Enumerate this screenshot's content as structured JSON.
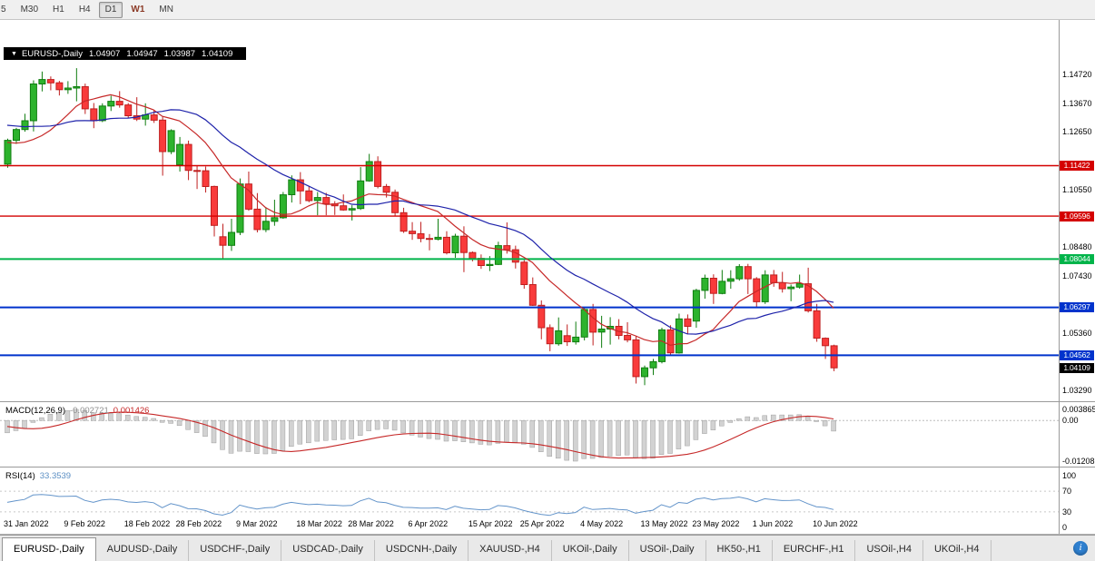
{
  "toolbar": {
    "timeframes": [
      {
        "label": "5"
      },
      {
        "label": "M30"
      },
      {
        "label": "H1"
      },
      {
        "label": "H4"
      },
      {
        "label": "D1",
        "selected": true
      },
      {
        "label": "W1",
        "accent": true
      },
      {
        "label": "MN"
      }
    ]
  },
  "chart": {
    "header": {
      "collapse_icon": "▼",
      "symbol": "EURUSD-,Daily",
      "open": "1.04907",
      "high": "1.04947",
      "low": "1.03987",
      "close": "1.04109"
    },
    "price_axis": {
      "labels": [
        "1.14720",
        "1.13670",
        "1.12650",
        "1.10550",
        "1.08480",
        "1.07430",
        "1.05360",
        "1.03290"
      ]
    },
    "hlines": [
      {
        "price": 1.11422,
        "label": "1.11422",
        "color": "#d40000",
        "width": 1.4
      },
      {
        "price": 1.09596,
        "label": "1.09596",
        "color": "#d40000",
        "width": 1.4
      },
      {
        "price": 1.08044,
        "label": "1.08044",
        "color": "#00b44a",
        "width": 2
      },
      {
        "price": 1.06297,
        "label": "1.06297",
        "color": "#0033cc",
        "width": 2
      },
      {
        "price": 1.04562,
        "label": "1.04562",
        "color": "#0033cc",
        "width": 2
      }
    ],
    "current_price_tag": {
      "price": 1.04109,
      "label": "1.04109",
      "color": "#000000"
    },
    "x_labels": [
      {
        "label": "31 Jan 2022",
        "bar": 0
      },
      {
        "label": "9 Feb 2022",
        "bar": 7
      },
      {
        "label": "18 Feb 2022",
        "bar": 14
      },
      {
        "label": "28 Feb 2022",
        "bar": 20
      },
      {
        "label": "9 Mar 2022",
        "bar": 27
      },
      {
        "label": "18 Mar 2022",
        "bar": 34
      },
      {
        "label": "28 Mar 2022",
        "bar": 40
      },
      {
        "label": "6 Apr 2022",
        "bar": 47
      },
      {
        "label": "15 Apr 2022",
        "bar": 54
      },
      {
        "label": "25 Apr 2022",
        "bar": 60
      },
      {
        "label": "4 May 2022",
        "bar": 67
      },
      {
        "label": "13 May 2022",
        "bar": 74
      },
      {
        "label": "23 May 2022",
        "bar": 80
      },
      {
        "label": "1 Jun 2022",
        "bar": 87
      },
      {
        "label": "10 Jun 2022",
        "bar": 94
      }
    ]
  },
  "chart_data": {
    "type": "candlestick",
    "title": "EURUSD-,Daily",
    "ylim": [
      1.029,
      1.1584
    ],
    "overlays": [
      {
        "name": "ma-fast",
        "period": 10,
        "color": "#c62828"
      },
      {
        "name": "ma-slow",
        "period": 20,
        "color": "#1e22aa"
      }
    ],
    "warmup_closes": [
      1.1298,
      1.1326,
      1.1355,
      1.1414,
      1.1454,
      1.1411,
      1.132,
      1.1255,
      1.1314,
      1.1343,
      1.1308,
      1.1303,
      1.1272,
      1.1339,
      1.1315,
      1.1246,
      1.1146,
      1.1138,
      1.1121,
      1.1152
    ],
    "ohlc": [
      [
        1.1148,
        1.124,
        1.1135,
        1.1234
      ],
      [
        1.1234,
        1.1279,
        1.1221,
        1.1273
      ],
      [
        1.1273,
        1.133,
        1.1265,
        1.1305
      ],
      [
        1.1305,
        1.1451,
        1.1266,
        1.1438
      ],
      [
        1.1438,
        1.1483,
        1.1411,
        1.1454
      ],
      [
        1.1454,
        1.1465,
        1.1415,
        1.1442
      ],
      [
        1.1442,
        1.1449,
        1.1396,
        1.1417
      ],
      [
        1.1417,
        1.1448,
        1.1402,
        1.1423
      ],
      [
        1.1423,
        1.1495,
        1.1375,
        1.1428
      ],
      [
        1.1428,
        1.1439,
        1.1329,
        1.1348
      ],
      [
        1.1348,
        1.1369,
        1.1278,
        1.1305
      ],
      [
        1.1305,
        1.1368,
        1.13,
        1.1358
      ],
      [
        1.1358,
        1.1395,
        1.134,
        1.1375
      ],
      [
        1.1375,
        1.1412,
        1.1352,
        1.1362
      ],
      [
        1.1362,
        1.1369,
        1.1315,
        1.1323
      ],
      [
        1.1323,
        1.139,
        1.1304,
        1.1311
      ],
      [
        1.1311,
        1.1368,
        1.1287,
        1.1326
      ],
      [
        1.1326,
        1.1343,
        1.1297,
        1.1307
      ],
      [
        1.1307,
        1.1319,
        1.1106,
        1.1193
      ],
      [
        1.1193,
        1.1274,
        1.1184,
        1.1269
      ],
      [
        1.1145,
        1.1246,
        1.1121,
        1.1219
      ],
      [
        1.1219,
        1.1233,
        1.109,
        1.1125
      ],
      [
        1.1125,
        1.1142,
        1.1058,
        1.1124
      ],
      [
        1.1124,
        1.1139,
        1.1045,
        1.1067
      ],
      [
        1.1067,
        1.107,
        1.0886,
        1.0926
      ],
      [
        1.0885,
        1.0932,
        1.0806,
        1.0854
      ],
      [
        1.0854,
        1.095,
        1.0834,
        1.0901
      ],
      [
        1.0901,
        1.1096,
        1.0891,
        1.1076
      ],
      [
        1.1076,
        1.1121,
        1.0979,
        1.0985
      ],
      [
        1.0985,
        1.1043,
        1.0901,
        1.0911
      ],
      [
        1.0911,
        1.0992,
        1.0902,
        1.0941
      ],
      [
        1.0941,
        1.1019,
        1.0925,
        1.0954
      ],
      [
        1.0954,
        1.1047,
        1.095,
        1.1037
      ],
      [
        1.1037,
        1.1107,
        1.1009,
        1.1091
      ],
      [
        1.1091,
        1.1119,
        1.1003,
        1.1051
      ],
      [
        1.1051,
        1.1069,
        1.101,
        1.1016
      ],
      [
        1.1016,
        1.1047,
        1.0963,
        1.1027
      ],
      [
        1.1027,
        1.1044,
        1.0963,
        1.1004
      ],
      [
        1.1004,
        1.1014,
        1.0964,
        1.0997
      ],
      [
        1.0997,
        1.1038,
        1.0979,
        1.0982
      ],
      [
        1.0982,
        1.0999,
        1.0944,
        1.0987
      ],
      [
        1.0987,
        1.1137,
        1.0982,
        1.1087
      ],
      [
        1.1087,
        1.1185,
        1.1084,
        1.1157
      ],
      [
        1.1157,
        1.1176,
        1.106,
        1.1067
      ],
      [
        1.1067,
        1.1076,
        1.1027,
        1.1046
      ],
      [
        1.1046,
        1.1056,
        1.096,
        1.0972
      ],
      [
        1.0972,
        1.099,
        1.0899,
        1.0905
      ],
      [
        1.0905,
        1.0938,
        1.0874,
        1.0896
      ],
      [
        1.0896,
        1.0939,
        1.0865,
        1.0879
      ],
      [
        1.0879,
        1.0895,
        1.0836,
        1.0876
      ],
      [
        1.0876,
        1.095,
        1.0872,
        1.0883
      ],
      [
        1.0883,
        1.0905,
        1.0821,
        1.0827
      ],
      [
        1.0827,
        1.0896,
        1.0809,
        1.0887
      ],
      [
        1.0887,
        1.0923,
        1.0757,
        1.0828
      ],
      [
        1.0828,
        1.0832,
        1.0796,
        1.0807
      ],
      [
        1.0807,
        1.0821,
        1.0769,
        1.0781
      ],
      [
        1.0781,
        1.0815,
        1.0761,
        1.0785
      ],
      [
        1.0785,
        1.0867,
        1.0783,
        1.0853
      ],
      [
        1.0853,
        1.0937,
        1.0824,
        1.0838
      ],
      [
        1.0838,
        1.0853,
        1.077,
        1.0793
      ],
      [
        1.0793,
        1.0801,
        1.0697,
        1.0712
      ],
      [
        1.0712,
        1.0738,
        1.0635,
        1.0637
      ],
      [
        1.0637,
        1.0655,
        1.0514,
        1.0556
      ],
      [
        1.0556,
        1.0568,
        1.0471,
        1.0498
      ],
      [
        1.0498,
        1.0593,
        1.0491,
        1.0545
      ],
      [
        1.0527,
        1.0568,
        1.049,
        1.0505
      ],
      [
        1.0505,
        1.0578,
        1.0495,
        1.0522
      ],
      [
        1.0522,
        1.063,
        1.051,
        1.0622
      ],
      [
        1.0622,
        1.0642,
        1.0492,
        1.054
      ],
      [
        1.054,
        1.0599,
        1.0483,
        1.0551
      ],
      [
        1.0551,
        1.0594,
        1.0495,
        1.0561
      ],
      [
        1.0561,
        1.0587,
        1.0514,
        1.0528
      ],
      [
        1.0528,
        1.0576,
        1.0503,
        1.0512
      ],
      [
        1.0512,
        1.0527,
        1.0354,
        1.0379
      ],
      [
        1.0379,
        1.0419,
        1.0348,
        1.0411
      ],
      [
        1.0411,
        1.0443,
        1.0385,
        1.0433
      ],
      [
        1.0433,
        1.0556,
        1.0427,
        1.0548
      ],
      [
        1.0548,
        1.0565,
        1.0459,
        1.0465
      ],
      [
        1.0465,
        1.0607,
        1.0462,
        1.0588
      ],
      [
        1.0588,
        1.0604,
        1.0532,
        1.0561
      ],
      [
        1.058,
        1.0697,
        1.0556,
        1.0691
      ],
      [
        1.0691,
        1.0748,
        1.0661,
        1.0735
      ],
      [
        1.0735,
        1.0749,
        1.0642,
        1.068
      ],
      [
        1.068,
        1.0765,
        1.0677,
        1.0724
      ],
      [
        1.0724,
        1.0764,
        1.0697,
        1.0733
      ],
      [
        1.0733,
        1.0786,
        1.0726,
        1.0777
      ],
      [
        1.0777,
        1.0787,
        1.0678,
        1.0733
      ],
      [
        1.0733,
        1.0739,
        1.0627,
        1.065
      ],
      [
        1.065,
        1.0764,
        1.0642,
        1.0747
      ],
      [
        1.0747,
        1.0765,
        1.0704,
        1.0719
      ],
      [
        1.0719,
        1.0758,
        1.0683,
        1.0697
      ],
      [
        1.0697,
        1.0712,
        1.0652,
        1.0703
      ],
      [
        1.0703,
        1.0748,
        1.0697,
        1.0715
      ],
      [
        1.0715,
        1.0773,
        1.0611,
        1.0617
      ],
      [
        1.0617,
        1.0642,
        1.0505,
        1.0518
      ],
      [
        1.0518,
        1.0521,
        1.0443,
        1.0491
      ],
      [
        1.04907,
        1.04947,
        1.03987,
        1.04109
      ]
    ]
  },
  "indicators": {
    "macd": {
      "title": "MACD(12,26,9)",
      "value_histogram": "-0.002721",
      "value_signal": "0.001426",
      "axis_labels": [
        "0.003865",
        "0.00",
        "-0.01208"
      ],
      "fast": 12,
      "slow": 26,
      "signal": 9,
      "histogram_color": "#d2d2d2",
      "histogram_border": "#9e9e9e",
      "signal_color": "#c62828"
    },
    "rsi": {
      "title": "RSI(14)",
      "value": "33.3539",
      "axis_labels": [
        "100",
        "70",
        "30",
        "0"
      ],
      "period": 14,
      "levels": [
        70,
        30
      ],
      "line_color": "#6394ca"
    }
  },
  "tabs": [
    {
      "label": "EURUSD-,Daily",
      "active": true
    },
    {
      "label": "AUDUSD-,Daily"
    },
    {
      "label": "USDCHF-,Daily"
    },
    {
      "label": "USDCAD-,Daily"
    },
    {
      "label": "USDCNH-,Daily"
    },
    {
      "label": "XAUUSD-,H4"
    },
    {
      "label": "UKOil-,Daily"
    },
    {
      "label": "USOil-,Daily"
    },
    {
      "label": "HK50-,H1"
    },
    {
      "label": "EURCHF-,H1"
    },
    {
      "label": "USOil-,H4"
    },
    {
      "label": "UKOil-,H4"
    }
  ],
  "footer": {
    "info_icon": "i"
  },
  "colors": {
    "candle_up": "#2db32d",
    "candle_up_border": "#0f7d0f",
    "candle_down": "#f93b3b",
    "candle_down_border": "#bf1f1f",
    "background": "#ffffff",
    "axis_text": "#000000"
  }
}
